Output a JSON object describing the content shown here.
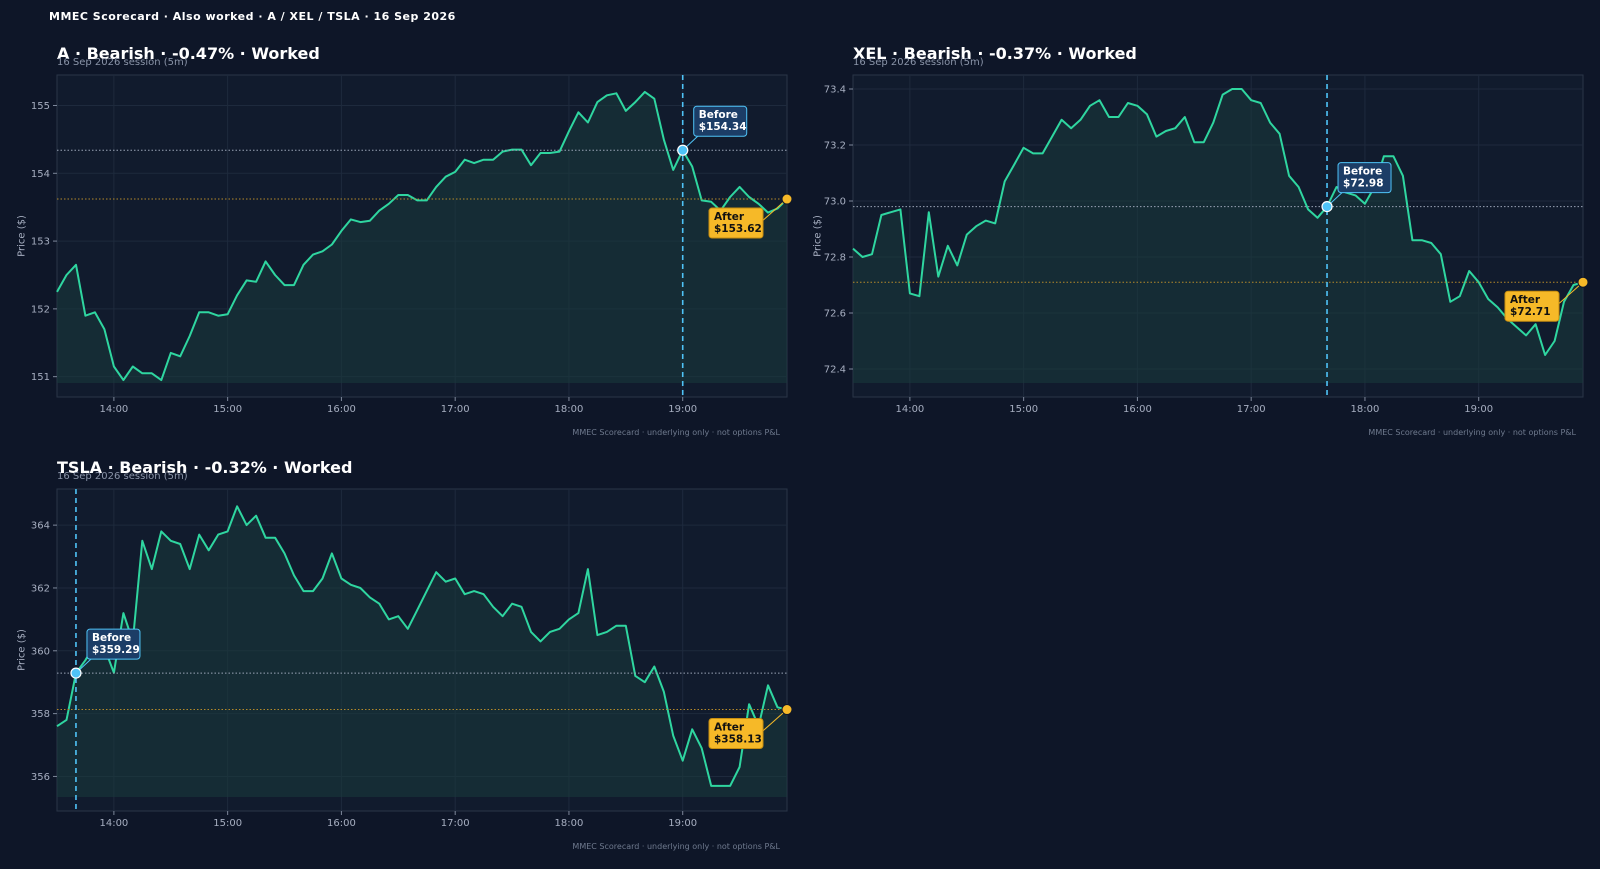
{
  "suptitle": "MMEC Scorecard · Also worked · A / XEL / TSLA · 16 Sep 2026",
  "colors": {
    "background": "#0e1628",
    "panel": "#111b2d",
    "line": "#2fd6a0",
    "before": "#4fc3f7",
    "after": "#f6b928",
    "grid": "#1e2a3d"
  },
  "chart_data": [
    {
      "type": "line",
      "title": "A · Bearish · -0.47% · Worked",
      "subtitle": "16 Sep 2026 session (5m)",
      "ylabel": "Price ($)",
      "footer": "MMEC Scorecard · underlying only · not options P&L",
      "x_ticks": [
        "14:00",
        "15:00",
        "16:00",
        "17:00",
        "18:00",
        "19:00"
      ],
      "y_ticks": [
        "151",
        "152",
        "153",
        "154",
        "155"
      ],
      "ylim": [
        150.7,
        155.45
      ],
      "xlim": [
        "13:30",
        "19:55"
      ],
      "before": {
        "time": "19:00",
        "price": 154.34,
        "label": "Before",
        "value": "$154.34"
      },
      "after": {
        "time": "19:55",
        "price": 153.62,
        "label": "After",
        "value": "$153.62"
      },
      "series": [
        {
          "x": [
            "13:30",
            "13:35",
            "13:40",
            "13:45",
            "13:50",
            "13:55",
            "14:00",
            "14:05",
            "14:10",
            "14:15",
            "14:20",
            "14:25",
            "14:30",
            "14:35",
            "14:40",
            "14:45",
            "14:50",
            "14:55",
            "15:00",
            "15:05",
            "15:10",
            "15:15",
            "15:20",
            "15:25",
            "15:30",
            "15:35",
            "15:40",
            "15:45",
            "15:50",
            "15:55",
            "16:00",
            "16:05",
            "16:10",
            "16:15",
            "16:20",
            "16:25",
            "16:30",
            "16:35",
            "16:40",
            "16:45",
            "16:50",
            "16:55",
            "17:00",
            "17:05",
            "17:10",
            "17:15",
            "17:20",
            "17:25",
            "17:30",
            "17:35",
            "17:40",
            "17:45",
            "17:50",
            "17:55",
            "18:00",
            "18:05",
            "18:10",
            "18:15",
            "18:20",
            "18:25",
            "18:30",
            "18:35",
            "18:40",
            "18:45",
            "18:50",
            "18:55",
            "19:00",
            "19:05",
            "19:10",
            "19:15",
            "19:20",
            "19:25",
            "19:30",
            "19:35",
            "19:40",
            "19:45",
            "19:50",
            "19:55"
          ],
          "values": [
            152.25,
            152.5,
            152.65,
            151.9,
            151.95,
            151.7,
            151.15,
            150.95,
            151.15,
            151.05,
            151.05,
            150.95,
            151.35,
            151.3,
            151.6,
            151.95,
            151.95,
            151.9,
            151.92,
            152.2,
            152.42,
            152.4,
            152.7,
            152.5,
            152.35,
            152.35,
            152.65,
            152.8,
            152.85,
            152.95,
            153.15,
            153.32,
            153.28,
            153.3,
            153.45,
            153.55,
            153.68,
            153.68,
            153.6,
            153.6,
            153.8,
            153.95,
            154.02,
            154.2,
            154.15,
            154.2,
            154.2,
            154.32,
            154.35,
            154.35,
            154.12,
            154.3,
            154.3,
            154.32,
            154.62,
            154.9,
            154.75,
            155.05,
            155.15,
            155.18,
            154.92,
            155.05,
            155.2,
            155.1,
            154.5,
            154.05,
            154.34,
            154.1,
            153.6,
            153.58,
            153.45,
            153.65,
            153.8,
            153.65,
            153.55,
            153.42,
            153.48,
            153.62
          ]
        }
      ]
    },
    {
      "type": "line",
      "title": "XEL · Bearish · -0.37% · Worked",
      "subtitle": "16 Sep 2026 session (5m)",
      "ylabel": "Price ($)",
      "footer": "MMEC Scorecard · underlying only · not options P&L",
      "x_ticks": [
        "14:00",
        "15:00",
        "16:00",
        "17:00",
        "18:00",
        "19:00"
      ],
      "y_ticks": [
        "72.4",
        "72.6",
        "72.8",
        "73.0",
        "73.2",
        "73.4"
      ],
      "ylim": [
        72.3,
        73.45
      ],
      "xlim": [
        "13:30",
        "19:55"
      ],
      "before": {
        "time": "17:40",
        "price": 72.98,
        "label": "Before",
        "value": "$72.98"
      },
      "after": {
        "time": "19:55",
        "price": 72.71,
        "label": "After",
        "value": "$72.71"
      },
      "series": [
        {
          "x": [
            "13:30",
            "13:35",
            "13:40",
            "13:45",
            "13:50",
            "13:55",
            "14:00",
            "14:05",
            "14:10",
            "14:15",
            "14:20",
            "14:25",
            "14:30",
            "14:35",
            "14:40",
            "14:45",
            "14:50",
            "14:55",
            "15:00",
            "15:05",
            "15:10",
            "15:15",
            "15:20",
            "15:25",
            "15:30",
            "15:35",
            "15:40",
            "15:45",
            "15:50",
            "15:55",
            "16:00",
            "16:05",
            "16:10",
            "16:15",
            "16:20",
            "16:25",
            "16:30",
            "16:35",
            "16:40",
            "16:45",
            "16:50",
            "16:55",
            "17:00",
            "17:05",
            "17:10",
            "17:15",
            "17:20",
            "17:25",
            "17:30",
            "17:35",
            "17:40",
            "17:45",
            "17:50",
            "17:55",
            "18:00",
            "18:05",
            "18:10",
            "18:15",
            "18:20",
            "18:25",
            "18:30",
            "18:35",
            "18:40",
            "18:45",
            "18:50",
            "18:55",
            "19:00",
            "19:05",
            "19:10",
            "19:15",
            "19:20",
            "19:25",
            "19:30",
            "19:35",
            "19:40",
            "19:45",
            "19:50",
            "19:55"
          ],
          "values": [
            72.83,
            72.8,
            72.81,
            72.95,
            72.96,
            72.97,
            72.67,
            72.66,
            72.96,
            72.73,
            72.84,
            72.77,
            72.88,
            72.91,
            72.93,
            72.92,
            73.07,
            73.13,
            73.19,
            73.17,
            73.17,
            73.23,
            73.29,
            73.26,
            73.29,
            73.34,
            73.36,
            73.3,
            73.3,
            73.35,
            73.34,
            73.31,
            73.23,
            73.25,
            73.26,
            73.3,
            73.21,
            73.21,
            73.28,
            73.38,
            73.4,
            73.4,
            73.36,
            73.35,
            73.28,
            73.24,
            73.09,
            73.05,
            72.97,
            72.94,
            72.98,
            73.05,
            73.03,
            73.02,
            72.99,
            73.05,
            73.16,
            73.16,
            73.09,
            72.86,
            72.86,
            72.85,
            72.81,
            72.64,
            72.66,
            72.75,
            72.71,
            72.65,
            72.62,
            72.58,
            72.55,
            72.52,
            72.56,
            72.45,
            72.5,
            72.64,
            72.7,
            72.71
          ]
        }
      ]
    },
    {
      "type": "line",
      "title": "TSLA · Bearish · -0.32% · Worked",
      "subtitle": "16 Sep 2026 session (5m)",
      "ylabel": "Price ($)",
      "footer": "MMEC Scorecard · underlying only · not options P&L",
      "x_ticks": [
        "14:00",
        "15:00",
        "16:00",
        "17:00",
        "18:00",
        "19:00"
      ],
      "y_ticks": [
        "356",
        "358",
        "360",
        "362",
        "364"
      ],
      "ylim": [
        354.9,
        365.15
      ],
      "xlim": [
        "13:30",
        "19:55"
      ],
      "before": {
        "time": "13:40",
        "price": 359.29,
        "label": "Before",
        "value": "$359.29"
      },
      "after": {
        "time": "19:55",
        "price": 358.13,
        "label": "After",
        "value": "$358.13"
      },
      "series": [
        {
          "x": [
            "13:30",
            "13:35",
            "13:40",
            "13:45",
            "13:50",
            "13:55",
            "14:00",
            "14:05",
            "14:10",
            "14:15",
            "14:20",
            "14:25",
            "14:30",
            "14:35",
            "14:40",
            "14:45",
            "14:50",
            "14:55",
            "15:00",
            "15:05",
            "15:10",
            "15:15",
            "15:20",
            "15:25",
            "15:30",
            "15:35",
            "15:40",
            "15:45",
            "15:50",
            "15:55",
            "16:00",
            "16:05",
            "16:10",
            "16:15",
            "16:20",
            "16:25",
            "16:30",
            "16:35",
            "16:40",
            "16:45",
            "16:50",
            "16:55",
            "17:00",
            "17:05",
            "17:10",
            "17:15",
            "17:20",
            "17:25",
            "17:30",
            "17:35",
            "17:40",
            "17:45",
            "17:50",
            "17:55",
            "18:00",
            "18:05",
            "18:10",
            "18:15",
            "18:20",
            "18:25",
            "18:30",
            "18:35",
            "18:40",
            "18:45",
            "18:50",
            "18:55",
            "19:00",
            "19:05",
            "19:10",
            "19:15",
            "19:20",
            "19:25",
            "19:30",
            "19:35",
            "19:40",
            "19:45",
            "19:50",
            "19:55"
          ],
          "values": [
            357.6,
            357.8,
            359.29,
            359.7,
            360.2,
            360.1,
            359.3,
            361.2,
            360.3,
            363.5,
            362.6,
            363.8,
            363.5,
            363.4,
            362.6,
            363.7,
            363.2,
            363.7,
            363.8,
            364.6,
            364.0,
            364.3,
            363.6,
            363.6,
            363.1,
            362.4,
            361.9,
            361.9,
            362.3,
            363.1,
            362.3,
            362.1,
            362.0,
            361.7,
            361.5,
            361.0,
            361.1,
            360.7,
            361.3,
            361.9,
            362.5,
            362.2,
            362.3,
            361.8,
            361.9,
            361.8,
            361.4,
            361.1,
            361.5,
            361.4,
            360.6,
            360.3,
            360.6,
            360.7,
            361.0,
            361.2,
            362.6,
            360.5,
            360.6,
            360.8,
            360.8,
            359.2,
            359.0,
            359.5,
            358.7,
            357.3,
            356.5,
            357.5,
            356.9,
            355.7,
            355.7,
            355.7,
            356.3,
            358.3,
            357.6,
            358.9,
            358.2,
            358.13
          ]
        }
      ]
    }
  ]
}
